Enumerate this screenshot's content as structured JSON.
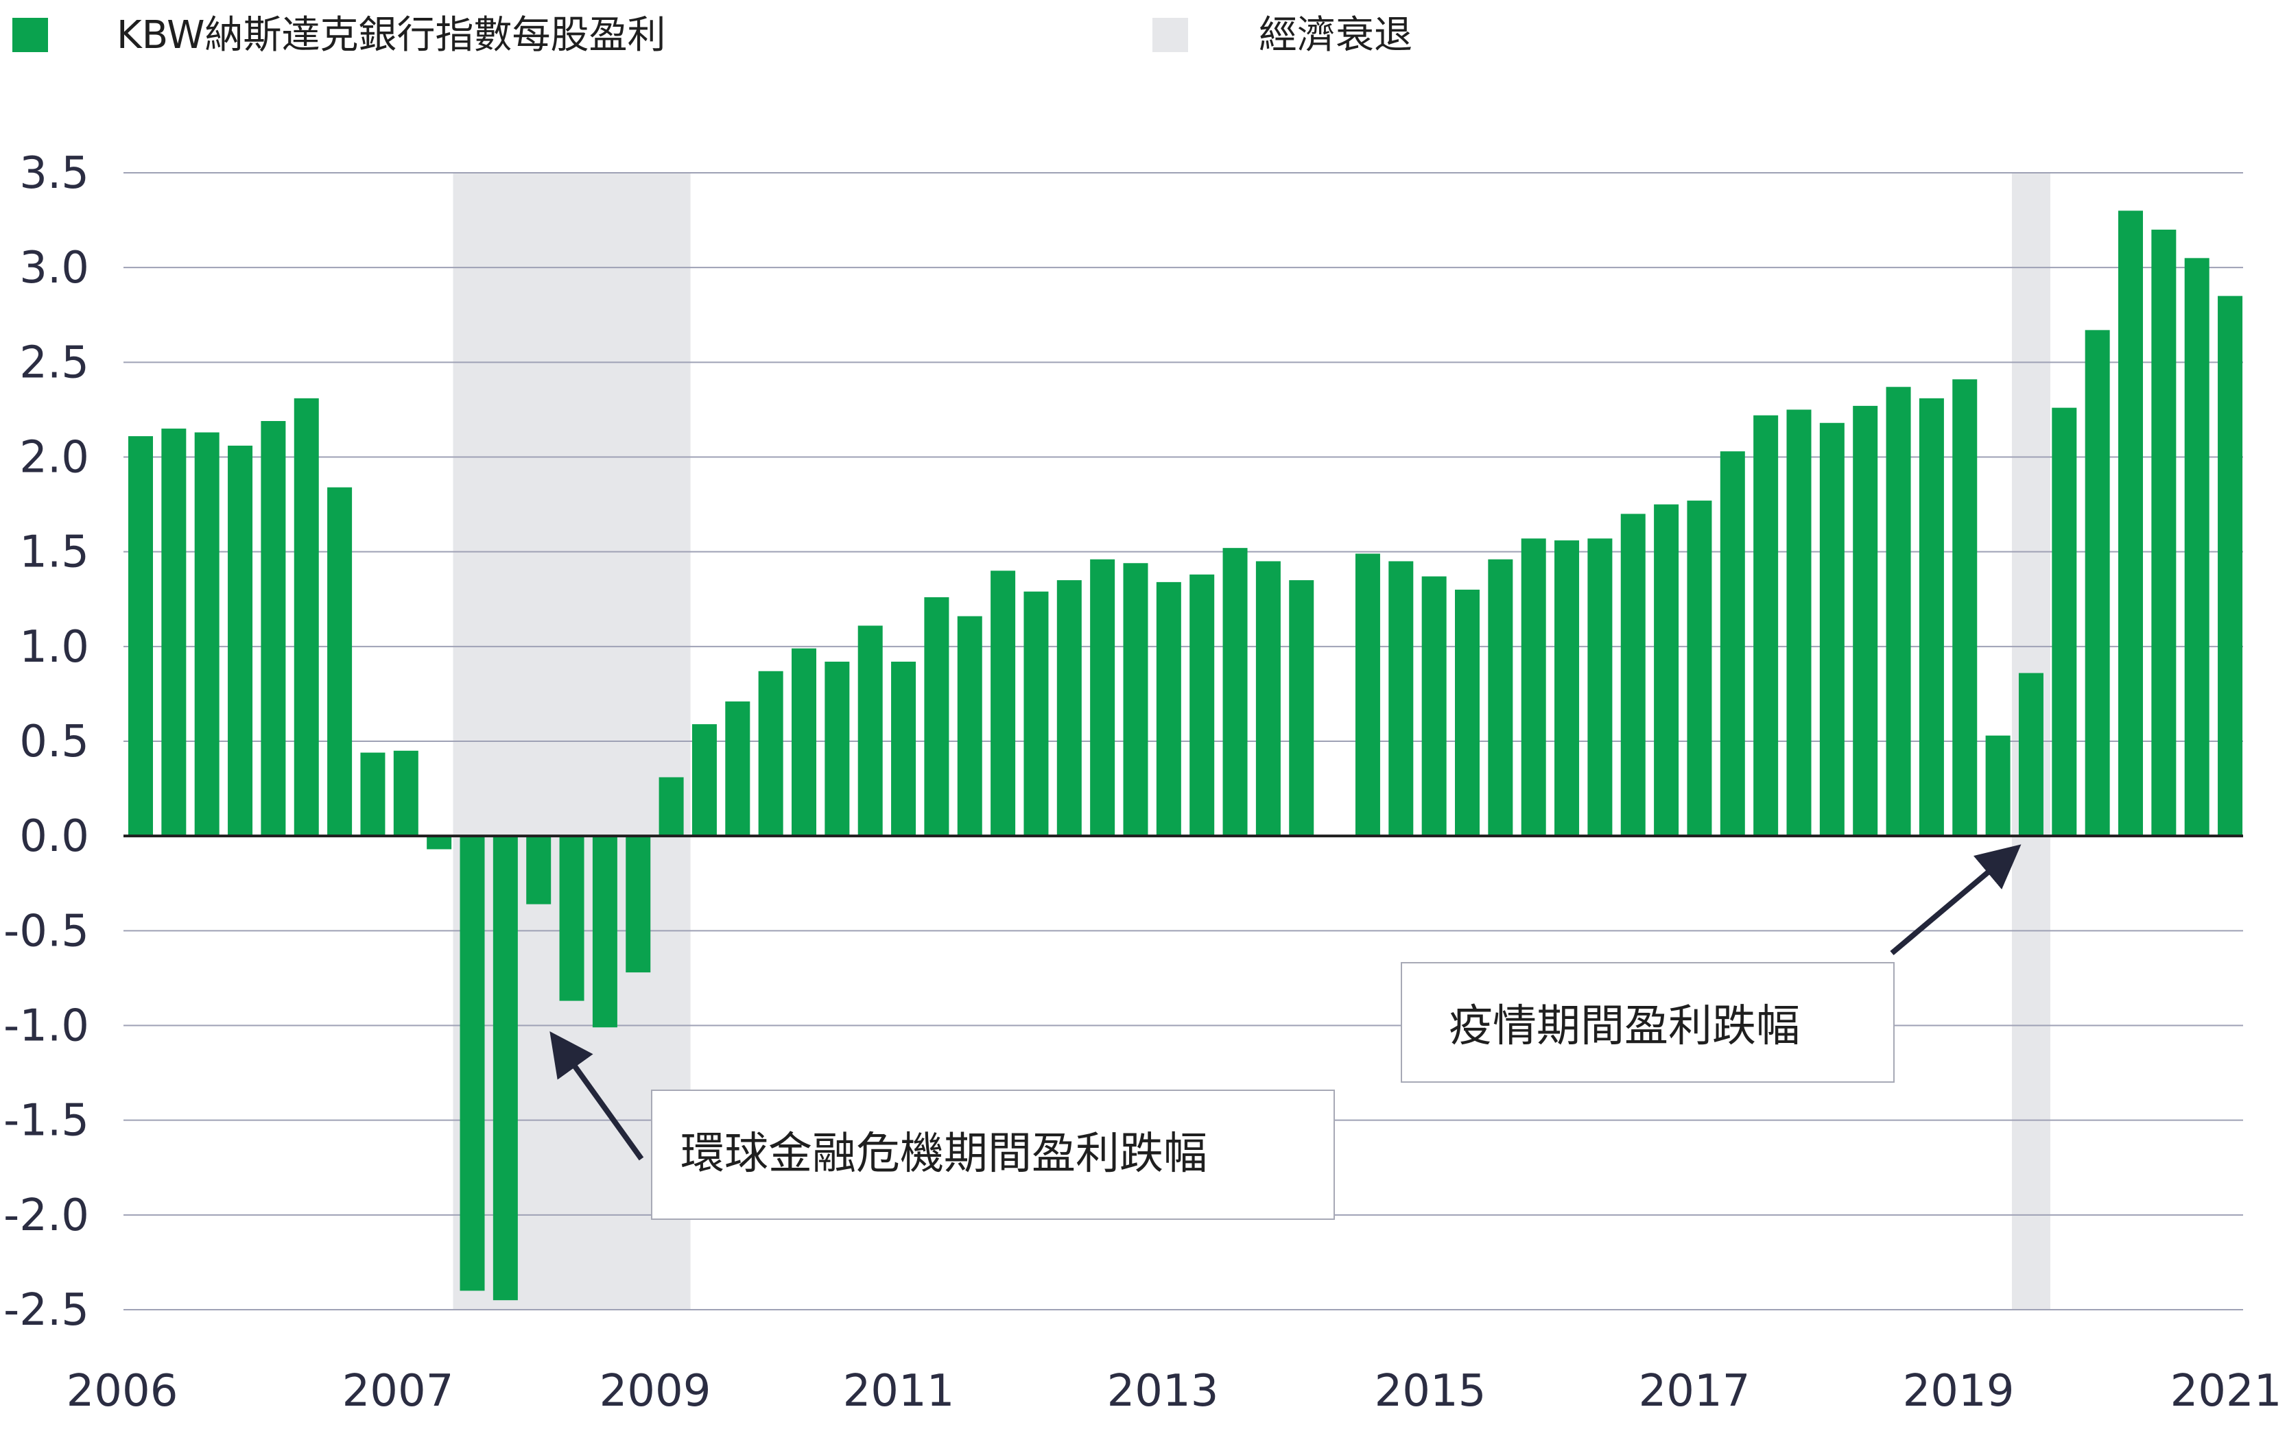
{
  "chart_data": {
    "type": "bar",
    "title": "",
    "xlabel": "",
    "ylabel": "",
    "ylim": [
      -2.5,
      3.5
    ],
    "yticks": [
      3.5,
      3.0,
      2.5,
      2.0,
      1.5,
      1.0,
      0.5,
      0.0,
      -0.5,
      -1.0,
      -1.5,
      -2.0,
      -2.5
    ],
    "ytick_labels": [
      "3.5",
      "3.0",
      "2.5",
      "2.0",
      "1.5",
      "1.0",
      "0.5",
      "0.0",
      "-0.5",
      "-1.0",
      "-1.5",
      "-2.0",
      "-2.5"
    ],
    "xtick_labels": [
      "2006",
      "2007",
      "2009",
      "2011",
      "2013",
      "2015",
      "2017",
      "2019",
      "2021"
    ],
    "grid": "horizontal",
    "legend_position": "top-left",
    "colors": {
      "bar": "#0aa24e",
      "recession": "#e6e7ea",
      "grid": "#9ea1b5",
      "axis": "#1f1f1f",
      "arrow": "#23263a"
    },
    "series": [
      {
        "name": "KBW納斯達克銀行指數每股盈利",
        "values": [
          2.11,
          2.15,
          2.13,
          2.06,
          2.19,
          2.31,
          1.84,
          0.44,
          0.45,
          -0.07,
          -2.4,
          -2.45,
          -0.36,
          -0.87,
          -1.01,
          -0.72,
          0.31,
          0.59,
          0.71,
          0.87,
          0.99,
          0.92,
          1.11,
          0.92,
          1.26,
          1.16,
          1.4,
          1.29,
          1.35,
          1.46,
          1.44,
          1.34,
          1.38,
          1.52,
          1.45,
          1.35,
          null,
          1.49,
          1.45,
          1.37,
          1.3,
          1.46,
          1.57,
          1.56,
          1.57,
          1.7,
          1.75,
          1.77,
          2.03,
          2.22,
          2.25,
          2.18,
          2.27,
          2.37,
          2.31,
          2.41,
          0.53,
          0.86,
          2.26,
          2.67,
          3.3,
          3.2,
          3.05,
          2.85
        ]
      }
    ],
    "recessions": [
      {
        "name": "經濟衰退",
        "start_index": 10,
        "end_index": 16
      },
      {
        "name": "經濟衰退",
        "start_index": 57,
        "end_index": 57
      }
    ],
    "legend": [
      {
        "label": "KBW納斯達克銀行指數每股盈利",
        "color": "#0aa24e"
      },
      {
        "label": "經濟衰退",
        "color": "#e6e7ea"
      }
    ],
    "annotations": [
      {
        "text": "環球金融危機期間盈利跌幅",
        "points_to_index": 14
      },
      {
        "text": "疫情期間盈利跌幅",
        "points_to_index": 57
      }
    ]
  }
}
